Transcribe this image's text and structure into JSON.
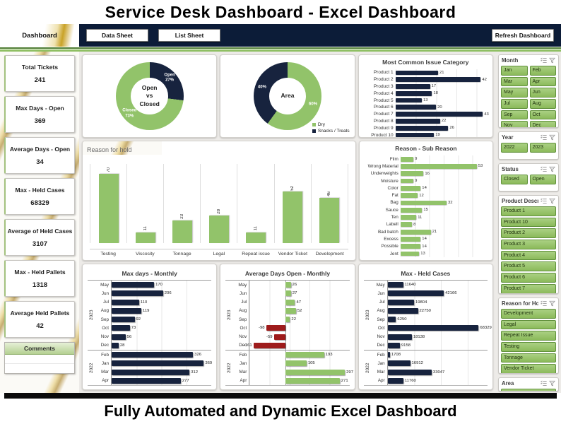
{
  "page": {
    "title": "Service Desk Dashboard - Excel Dashboard",
    "footer": "Fully Automated and Dynamic Excel Dashboard"
  },
  "nav": {
    "tab": "Dashboard",
    "sheets": [
      "Data Sheet",
      "List Sheet"
    ],
    "refresh": "Refresh Dashboard"
  },
  "kpis": [
    {
      "label": "Total Tickets",
      "value": "241"
    },
    {
      "label": "Max Days - Open",
      "value": "369"
    },
    {
      "label": "Average Days - Open",
      "value": "34"
    },
    {
      "label": "Max - Held Cases",
      "value": "68329"
    },
    {
      "label": "Average of Held Cases",
      "value": "3107"
    },
    {
      "label": "Max - Held Pallets",
      "value": "1318"
    },
    {
      "label": "Average Held Pallets",
      "value": "42"
    }
  ],
  "comments_label": "Comments",
  "colors": {
    "navy": "#17233E",
    "green": "#92C36A",
    "red": "#9E1B1B"
  },
  "slicers": [
    {
      "title": "Month",
      "columns": 2,
      "items": [
        "Jan",
        "Feb",
        "Mar",
        "Apr",
        "May",
        "Jun",
        "Jul",
        "Aug",
        "Sep",
        "Oct",
        "Nov",
        "Dec"
      ]
    },
    {
      "title": "Year",
      "columns": 2,
      "items": [
        "2022",
        "2023"
      ]
    },
    {
      "title": "Status",
      "columns": 2,
      "items": [
        "Closed",
        "Open"
      ]
    },
    {
      "title": "Product Descript...",
      "columns": 1,
      "items": [
        "Product 1",
        "Product 10",
        "Product 2",
        "Product 3",
        "Product 4",
        "Product 5",
        "Product 6",
        "Product 7",
        "Product 8",
        "Product 9"
      ]
    },
    {
      "title": "Reason for Hold",
      "columns": 1,
      "items": [
        "Development",
        "Legal",
        "Repeat Issue",
        "Testing",
        "Tonnage",
        "Vendor Ticket",
        "Viscosity"
      ]
    },
    {
      "title": "Area",
      "columns": 1,
      "items": [],
      "cut": true
    }
  ],
  "chart_data": [
    {
      "id": "open_vs_closed",
      "type": "pie",
      "variant": "donut",
      "center_label": "Open\nvs\nClosed",
      "label_mode": "name_pct",
      "slices": [
        {
          "label": "Open",
          "pct": 27,
          "color": "#17233E"
        },
        {
          "label": "Closed",
          "pct": 73,
          "color": "#92C36A"
        }
      ]
    },
    {
      "id": "area_donut",
      "type": "pie",
      "variant": "donut",
      "center_label": "Area",
      "label_mode": "pct",
      "legend": true,
      "slices": [
        {
          "label": "Dry",
          "pct": 60,
          "color": "#92C36A"
        },
        {
          "label": "Snacks / Treats",
          "pct": 40,
          "color": "#17233E"
        }
      ]
    },
    {
      "id": "issue_category",
      "type": "bar",
      "variant": "hbar",
      "title": "Most Common Issue Category",
      "categories": [
        "Product 1",
        "Product 2",
        "Product 3",
        "Product 4",
        "Product 5",
        "Product 6",
        "Product 7",
        "Product 8",
        "Product 9",
        "Product 10"
      ],
      "values": [
        21,
        42,
        17,
        18,
        13,
        20,
        43,
        22,
        26,
        19
      ],
      "color": "#17233E",
      "xlim": [
        0,
        45
      ],
      "tick_step": 10
    },
    {
      "id": "reason_for_hold",
      "type": "bar",
      "variant": "col",
      "title": "Reason for hold",
      "categories": [
        "Testing",
        "Viscosity",
        "Tonnage",
        "Legal",
        "Repeat issue",
        "Vendor Ticket",
        "Development"
      ],
      "values": [
        70,
        11,
        23,
        28,
        11,
        52,
        46
      ],
      "color": "#92C36A",
      "ylim": [
        0,
        80
      ]
    },
    {
      "id": "sub_reason",
      "type": "bar",
      "variant": "hbar",
      "title": "Reason - Sub Reason",
      "categories": [
        "Film",
        "Wrong Material",
        "Underweights",
        "Moisture",
        "Color",
        "Fat",
        "Bag",
        "Sauce",
        "Ten",
        "Labell",
        "Bad batch",
        "Excess",
        "Possible",
        "Jent"
      ],
      "values": [
        9,
        53,
        16,
        9,
        14,
        12,
        32,
        15,
        11,
        8,
        21,
        14,
        14,
        13
      ],
      "color": "#92C36A",
      "xlim": [
        0,
        60
      ],
      "tick_step": 10
    },
    {
      "id": "max_days_monthly",
      "type": "bar",
      "variant": "grouped-h",
      "title": "Max days - Monthly",
      "groups": [
        {
          "year": "2023",
          "categories": [
            "May",
            "Jun",
            "Jul",
            "Aug",
            "Sep",
            "Oct",
            "Nov",
            "Dec"
          ],
          "values": [
            170,
            206,
            110,
            119,
            92,
            73,
            56,
            28
          ]
        },
        {
          "year": "2022",
          "categories": [
            "Feb",
            "Jan",
            "Mar",
            "Apr"
          ],
          "values": [
            326,
            369,
            312,
            277
          ]
        }
      ],
      "color": "#17233E",
      "xlim": [
        0,
        400
      ],
      "tick_step": 100
    },
    {
      "id": "avg_days_monthly",
      "type": "bar",
      "variant": "grouped-h",
      "title": "Average Days Open - Monthly",
      "groups": [
        {
          "year": "2023",
          "categories": [
            "May",
            "Jun",
            "Jul",
            "Aug",
            "Sep",
            "Oct",
            "Nov",
            "Dec"
          ],
          "values": [
            26,
            27,
            47,
            52,
            22,
            -98,
            -59,
            -161
          ]
        },
        {
          "year": "2022",
          "categories": [
            "Feb",
            "Jan",
            "Mar",
            "Apr"
          ],
          "values": [
            193,
            105,
            297,
            271
          ]
        }
      ],
      "color": "#92C36A",
      "neg_color": "#9E1B1B",
      "xlim": [
        -180,
        320
      ],
      "tick_step": 100
    },
    {
      "id": "max_held_cases",
      "type": "bar",
      "variant": "grouped-h",
      "title": "Max - Held Cases",
      "groups": [
        {
          "year": "2023",
          "categories": [
            "May",
            "Jun",
            "Jul",
            "Aug",
            "Sep",
            "Oct",
            "Nov",
            "Dec"
          ],
          "values": [
            11640,
            42166,
            19804,
            22750,
            6250,
            68329,
            18138,
            9158
          ]
        },
        {
          "year": "2022",
          "categories": [
            "Feb",
            "Jan",
            "Mar",
            "Apr"
          ],
          "values": [
            1708,
            16912,
            33047,
            11760
          ]
        }
      ],
      "color": "#17233E",
      "xlim": [
        0,
        75000
      ],
      "tick_step": 20000
    }
  ]
}
